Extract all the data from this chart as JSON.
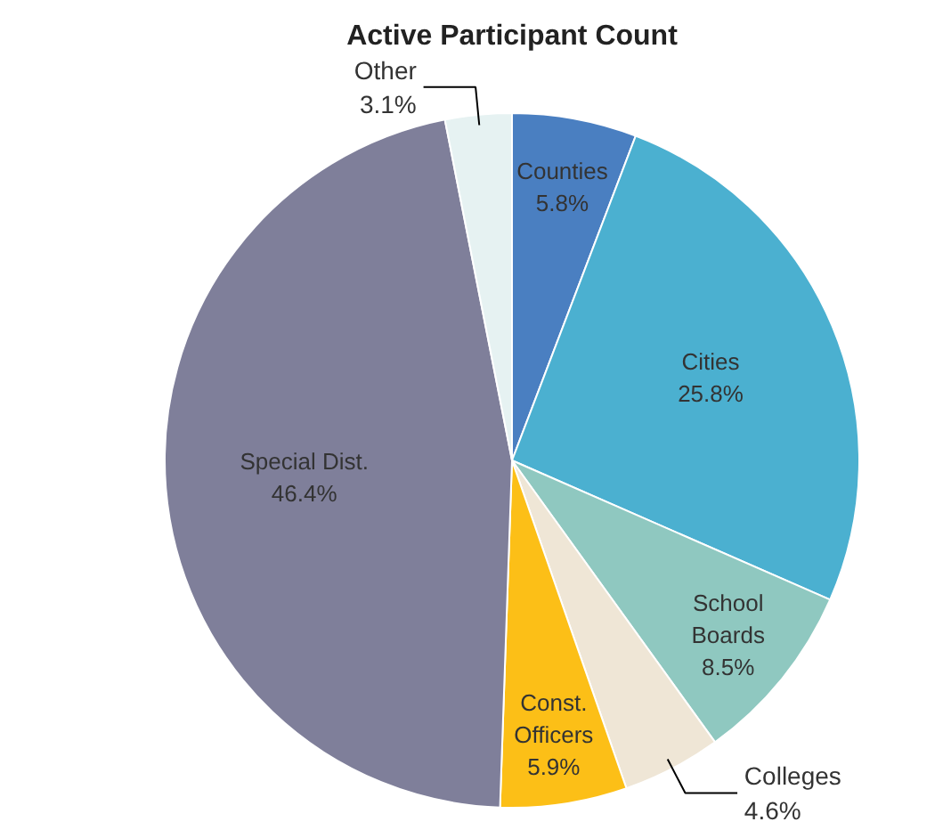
{
  "chart_data": {
    "type": "pie",
    "title": "Active Participant Count",
    "categories": [
      "Counties",
      "Cities",
      "School Boards",
      "Colleges",
      "Const. Officers",
      "Special Dist.",
      "Other"
    ],
    "values": [
      5.8,
      25.8,
      8.5,
      4.6,
      5.9,
      46.4,
      3.1
    ],
    "value_labels": [
      "5.8%",
      "25.8%",
      "8.5%",
      "4.6%",
      "5.9%",
      "46.4%",
      "3.1%"
    ],
    "colors": [
      "#4a7fc1",
      "#4bb0d0",
      "#8fc8c0",
      "#efe6d6",
      "#fcbf17",
      "#7f7f9a",
      "#e6f2f2"
    ]
  }
}
